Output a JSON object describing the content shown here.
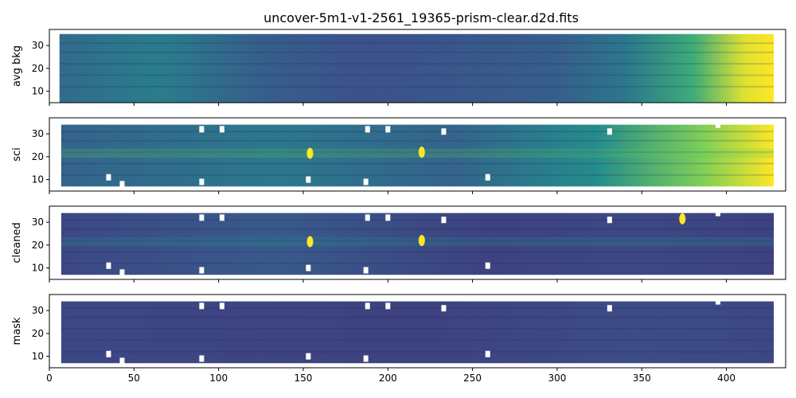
{
  "figure": {
    "title": "uncover-5m1-v1-2561_19365-prism-clear.d2d.fits"
  },
  "colors": {
    "cmap_low": "#440154",
    "cmap_mid_low": "#3b528b",
    "cmap_mid": "#21918c",
    "cmap_mid_high": "#5ec962",
    "cmap_high": "#fde725",
    "axis": "#000000",
    "background": "#ffffff"
  },
  "chart_data": [
    {
      "type": "heatmap",
      "ylabel": "avg bkg",
      "xlim": [
        0,
        435
      ],
      "ylim": [
        5,
        37
      ],
      "yticks": [
        10,
        20,
        30
      ],
      "xticks": [
        0,
        50,
        100,
        150,
        200,
        250,
        300,
        350,
        400
      ],
      "show_xticklabels": false,
      "colormap": "viridis",
      "data_extent": {
        "x": [
          6,
          428
        ],
        "y": [
          5,
          35
        ]
      },
      "description_values": {
        "gradient_columns": [
          0,
          60,
          120,
          180,
          240,
          300,
          340,
          380,
          410,
          428
        ],
        "gradient_levels": [
          0.35,
          0.42,
          0.3,
          0.25,
          0.27,
          0.3,
          0.4,
          0.62,
          0.95,
          1.0
        ]
      }
    },
    {
      "type": "heatmap",
      "ylabel": "sci",
      "xlim": [
        0,
        435
      ],
      "ylim": [
        5,
        37
      ],
      "yticks": [
        10,
        20,
        30
      ],
      "xticks": [
        0,
        50,
        100,
        150,
        200,
        250,
        300,
        350,
        400
      ],
      "show_xticklabels": false,
      "colormap": "viridis",
      "data_extent": {
        "x": [
          7,
          428
        ],
        "y": [
          7,
          34
        ]
      },
      "sources": [
        {
          "x": 154,
          "y": 21.5
        },
        {
          "x": 220,
          "y": 22
        }
      ],
      "masked_pixels": [
        [
          35,
          11
        ],
        [
          43,
          8
        ],
        [
          90,
          32
        ],
        [
          102,
          32
        ],
        [
          90,
          9
        ],
        [
          153,
          10
        ],
        [
          187,
          9
        ],
        [
          188,
          32
        ],
        [
          200,
          32
        ],
        [
          233,
          31
        ],
        [
          259,
          11
        ],
        [
          331,
          31
        ],
        [
          395,
          34
        ]
      ]
    },
    {
      "type": "heatmap",
      "ylabel": "cleaned",
      "xlim": [
        0,
        435
      ],
      "ylim": [
        5,
        37
      ],
      "yticks": [
        10,
        20,
        30
      ],
      "xticks": [
        0,
        50,
        100,
        150,
        200,
        250,
        300,
        350,
        400
      ],
      "show_xticklabels": false,
      "colormap": "viridis",
      "data_extent": {
        "x": [
          7,
          428
        ],
        "y": [
          7,
          34
        ]
      },
      "sources": [
        {
          "x": 154,
          "y": 21.5
        },
        {
          "x": 220,
          "y": 22
        },
        {
          "x": 374,
          "y": 31.5
        }
      ],
      "masked_pixels": [
        [
          35,
          11
        ],
        [
          43,
          8
        ],
        [
          90,
          32
        ],
        [
          102,
          32
        ],
        [
          90,
          9
        ],
        [
          153,
          10
        ],
        [
          187,
          9
        ],
        [
          188,
          32
        ],
        [
          200,
          32
        ],
        [
          233,
          31
        ],
        [
          259,
          11
        ],
        [
          331,
          31
        ],
        [
          395,
          34
        ]
      ]
    },
    {
      "type": "heatmap",
      "ylabel": "mask",
      "xlim": [
        0,
        435
      ],
      "ylim": [
        5,
        37
      ],
      "yticks": [
        10,
        20,
        30
      ],
      "xticks": [
        0,
        50,
        100,
        150,
        200,
        250,
        300,
        350,
        400
      ],
      "xticklabels": [
        "0",
        "50",
        "100",
        "150",
        "200",
        "250",
        "300",
        "350",
        "400"
      ],
      "show_xticklabels": true,
      "colormap": "viridis",
      "data_extent": {
        "x": [
          7,
          428
        ],
        "y": [
          7,
          34
        ]
      },
      "masked_pixels": [
        [
          35,
          11
        ],
        [
          43,
          8
        ],
        [
          90,
          32
        ],
        [
          102,
          32
        ],
        [
          90,
          9
        ],
        [
          153,
          10
        ],
        [
          187,
          9
        ],
        [
          188,
          32
        ],
        [
          200,
          32
        ],
        [
          233,
          31
        ],
        [
          259,
          11
        ],
        [
          331,
          31
        ],
        [
          395,
          34
        ]
      ]
    }
  ]
}
